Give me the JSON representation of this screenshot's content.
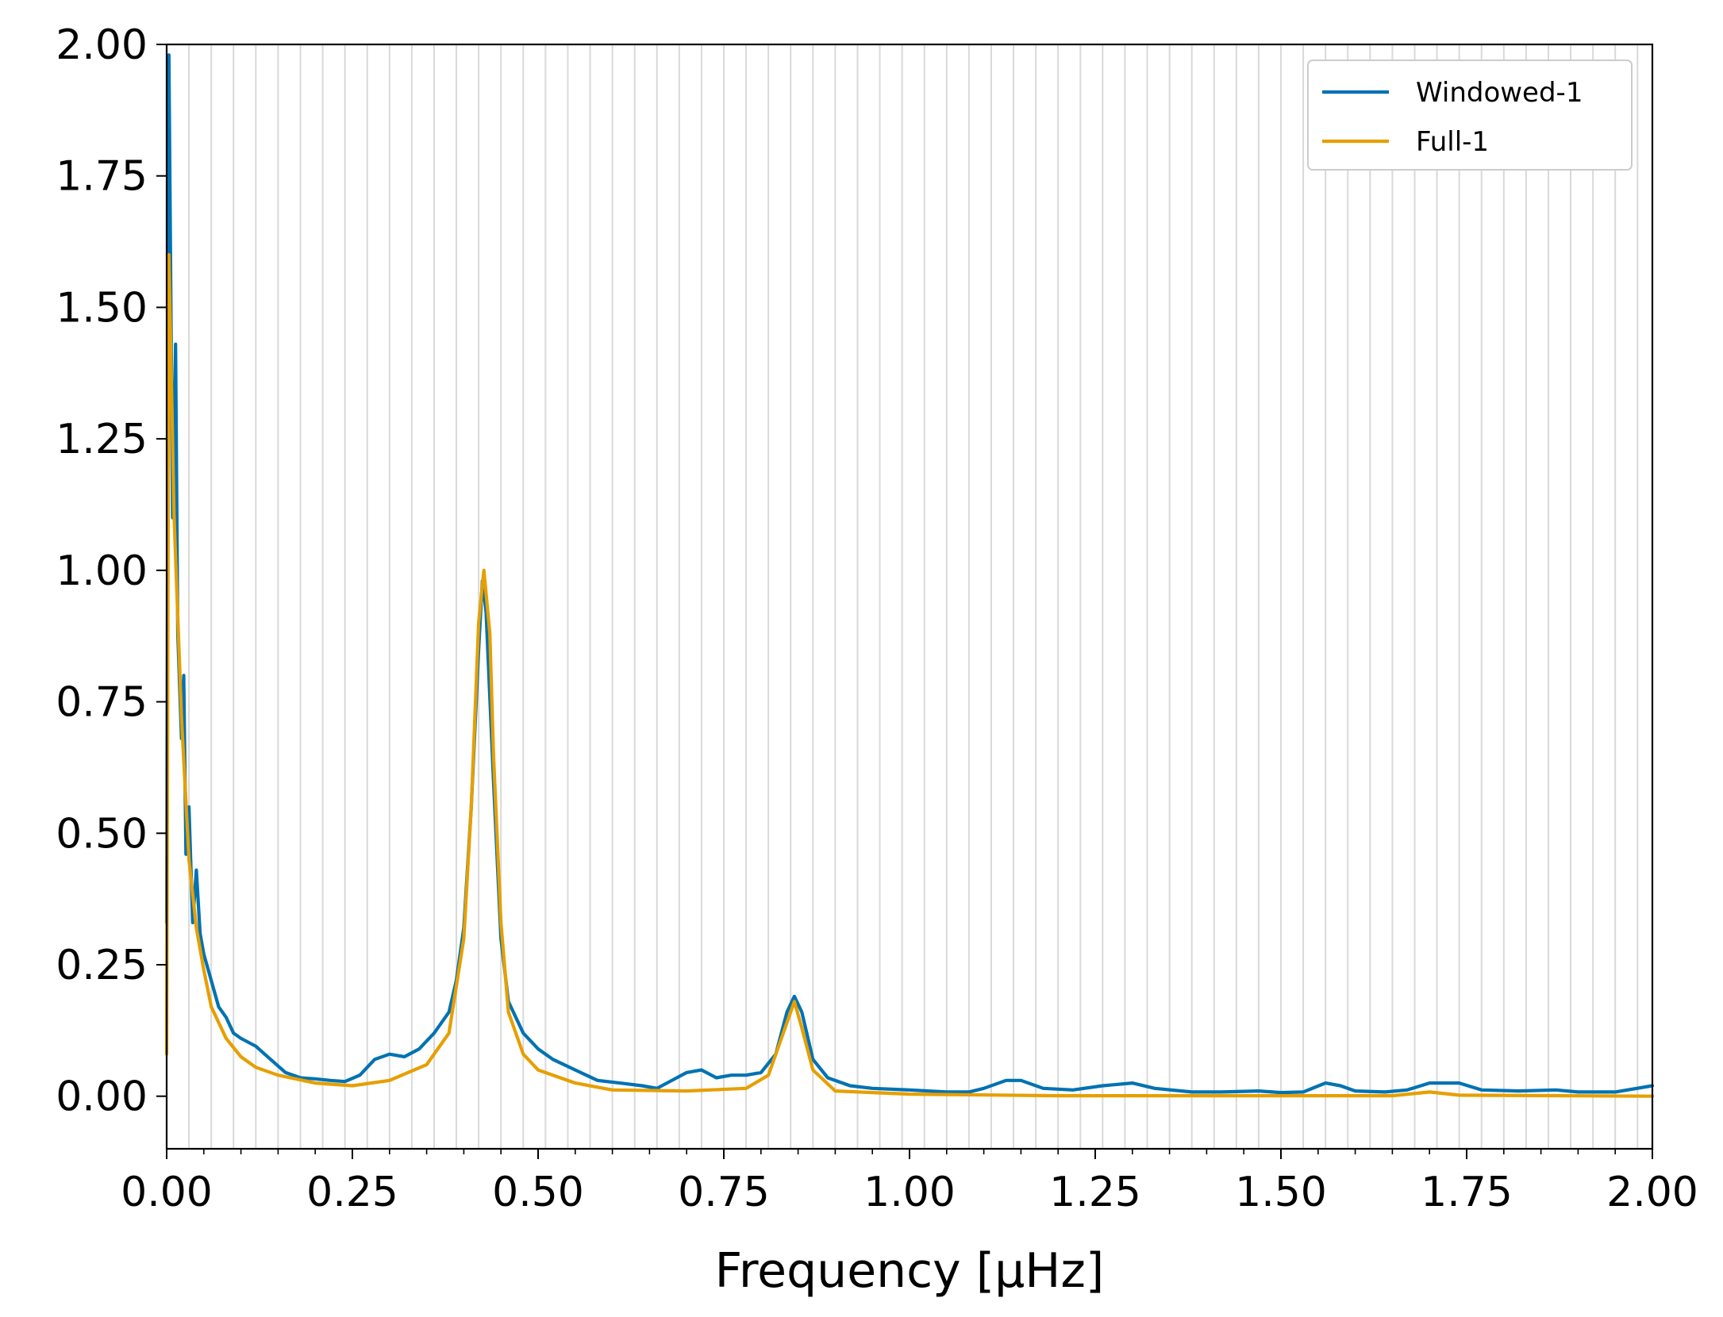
{
  "chart_data": {
    "type": "line",
    "title": "",
    "xlabel": "Frequency [μHz]",
    "ylabel": "",
    "xlim": [
      0.0,
      2.0
    ],
    "ylim": [
      -0.1,
      2.0
    ],
    "grid": "vertical-minor",
    "x_ticks": [
      "0.00",
      "0.25",
      "0.50",
      "0.75",
      "1.00",
      "1.25",
      "1.50",
      "1.75",
      "2.00"
    ],
    "y_ticks": [
      "0.00",
      "0.25",
      "0.50",
      "0.75",
      "1.00",
      "1.25",
      "1.50",
      "1.75",
      "2.00"
    ],
    "legend": {
      "placement": "top-right"
    },
    "series": [
      {
        "name": "Windowed-1",
        "color": "#0072b2",
        "points": [
          [
            0.0,
            0.33
          ],
          [
            0.003,
            1.98
          ],
          [
            0.008,
            1.1
          ],
          [
            0.012,
            1.43
          ],
          [
            0.015,
            0.88
          ],
          [
            0.02,
            0.68
          ],
          [
            0.023,
            0.8
          ],
          [
            0.026,
            0.46
          ],
          [
            0.03,
            0.55
          ],
          [
            0.035,
            0.33
          ],
          [
            0.04,
            0.43
          ],
          [
            0.045,
            0.31
          ],
          [
            0.05,
            0.27
          ],
          [
            0.06,
            0.22
          ],
          [
            0.07,
            0.17
          ],
          [
            0.08,
            0.15
          ],
          [
            0.09,
            0.12
          ],
          [
            0.1,
            0.11
          ],
          [
            0.12,
            0.095
          ],
          [
            0.14,
            0.07
          ],
          [
            0.16,
            0.045
          ],
          [
            0.18,
            0.035
          ],
          [
            0.2,
            0.033
          ],
          [
            0.22,
            0.03
          ],
          [
            0.24,
            0.028
          ],
          [
            0.26,
            0.04
          ],
          [
            0.28,
            0.07
          ],
          [
            0.3,
            0.08
          ],
          [
            0.32,
            0.075
          ],
          [
            0.34,
            0.09
          ],
          [
            0.36,
            0.12
          ],
          [
            0.38,
            0.16
          ],
          [
            0.39,
            0.22
          ],
          [
            0.4,
            0.32
          ],
          [
            0.41,
            0.55
          ],
          [
            0.42,
            0.85
          ],
          [
            0.425,
            0.98
          ],
          [
            0.43,
            0.92
          ],
          [
            0.44,
            0.6
          ],
          [
            0.45,
            0.3
          ],
          [
            0.46,
            0.18
          ],
          [
            0.48,
            0.12
          ],
          [
            0.5,
            0.09
          ],
          [
            0.52,
            0.07
          ],
          [
            0.55,
            0.05
          ],
          [
            0.58,
            0.03
          ],
          [
            0.61,
            0.025
          ],
          [
            0.64,
            0.02
          ],
          [
            0.66,
            0.015
          ],
          [
            0.68,
            0.03
          ],
          [
            0.7,
            0.045
          ],
          [
            0.72,
            0.05
          ],
          [
            0.74,
            0.035
          ],
          [
            0.76,
            0.04
          ],
          [
            0.78,
            0.04
          ],
          [
            0.8,
            0.045
          ],
          [
            0.82,
            0.08
          ],
          [
            0.835,
            0.16
          ],
          [
            0.845,
            0.19
          ],
          [
            0.855,
            0.16
          ],
          [
            0.87,
            0.07
          ],
          [
            0.89,
            0.035
          ],
          [
            0.92,
            0.02
          ],
          [
            0.95,
            0.015
          ],
          [
            1.0,
            0.012
          ],
          [
            1.05,
            0.008
          ],
          [
            1.08,
            0.008
          ],
          [
            1.1,
            0.015
          ],
          [
            1.13,
            0.03
          ],
          [
            1.15,
            0.03
          ],
          [
            1.18,
            0.015
          ],
          [
            1.22,
            0.012
          ],
          [
            1.26,
            0.02
          ],
          [
            1.3,
            0.025
          ],
          [
            1.33,
            0.015
          ],
          [
            1.38,
            0.008
          ],
          [
            1.42,
            0.008
          ],
          [
            1.47,
            0.01
          ],
          [
            1.5,
            0.007
          ],
          [
            1.53,
            0.008
          ],
          [
            1.56,
            0.025
          ],
          [
            1.58,
            0.02
          ],
          [
            1.6,
            0.01
          ],
          [
            1.64,
            0.008
          ],
          [
            1.67,
            0.012
          ],
          [
            1.7,
            0.025
          ],
          [
            1.74,
            0.025
          ],
          [
            1.77,
            0.012
          ],
          [
            1.82,
            0.01
          ],
          [
            1.87,
            0.012
          ],
          [
            1.9,
            0.008
          ],
          [
            1.95,
            0.008
          ],
          [
            2.0,
            0.02
          ]
        ]
      },
      {
        "name": "Full-1",
        "color": "#e69f00",
        "points": [
          [
            0.0,
            0.08
          ],
          [
            0.003,
            1.6
          ],
          [
            0.01,
            1.1
          ],
          [
            0.02,
            0.72
          ],
          [
            0.03,
            0.45
          ],
          [
            0.04,
            0.32
          ],
          [
            0.05,
            0.24
          ],
          [
            0.06,
            0.17
          ],
          [
            0.08,
            0.11
          ],
          [
            0.1,
            0.075
          ],
          [
            0.12,
            0.055
          ],
          [
            0.15,
            0.04
          ],
          [
            0.2,
            0.025
          ],
          [
            0.25,
            0.02
          ],
          [
            0.3,
            0.03
          ],
          [
            0.35,
            0.06
          ],
          [
            0.38,
            0.12
          ],
          [
            0.4,
            0.3
          ],
          [
            0.41,
            0.55
          ],
          [
            0.42,
            0.9
          ],
          [
            0.427,
            1.0
          ],
          [
            0.435,
            0.88
          ],
          [
            0.44,
            0.65
          ],
          [
            0.45,
            0.33
          ],
          [
            0.46,
            0.16
          ],
          [
            0.48,
            0.08
          ],
          [
            0.5,
            0.05
          ],
          [
            0.55,
            0.025
          ],
          [
            0.6,
            0.012
          ],
          [
            0.7,
            0.01
          ],
          [
            0.78,
            0.015
          ],
          [
            0.81,
            0.04
          ],
          [
            0.83,
            0.12
          ],
          [
            0.845,
            0.18
          ],
          [
            0.855,
            0.13
          ],
          [
            0.87,
            0.05
          ],
          [
            0.9,
            0.01
          ],
          [
            1.0,
            0.004
          ],
          [
            1.2,
            0.001
          ],
          [
            1.5,
            0.001
          ],
          [
            1.65,
            0.001
          ],
          [
            1.7,
            0.008
          ],
          [
            1.74,
            0.002
          ],
          [
            2.0,
            0.0
          ]
        ]
      }
    ]
  }
}
